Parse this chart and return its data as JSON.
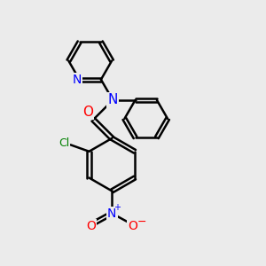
{
  "bg_color": "#ebebeb",
  "bond_color": "#000000",
  "bond_width": 1.8,
  "N_color": "#0000ff",
  "O_color": "#ff0000",
  "Cl_color": "#008000",
  "figsize": [
    3.0,
    3.0
  ],
  "dpi": 100,
  "xlim": [
    0,
    10
  ],
  "ylim": [
    0,
    10
  ]
}
